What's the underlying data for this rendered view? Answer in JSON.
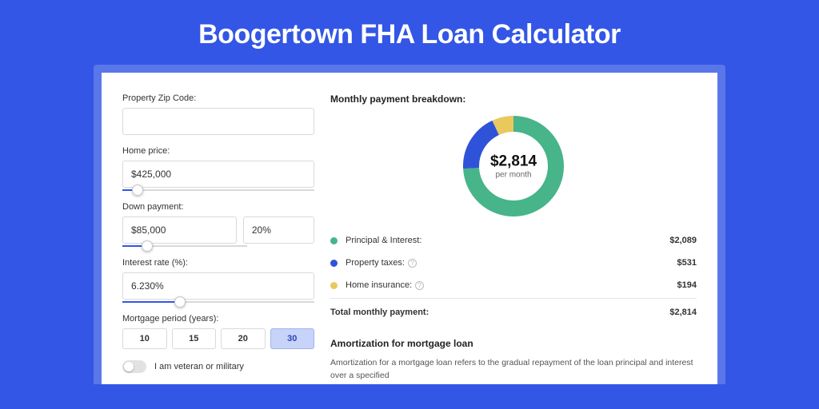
{
  "page": {
    "title": "Boogertown FHA Loan Calculator",
    "bg_color": "#3356e6",
    "panel_wrap_color": "#5a77ea",
    "panel_bg": "#ffffff"
  },
  "form": {
    "zip_label": "Property Zip Code:",
    "zip_value": "",
    "home_price_label": "Home price:",
    "home_price_value": "$425,000",
    "home_price_slider_pct": 8,
    "down_payment_label": "Down payment:",
    "down_payment_value": "$85,000",
    "down_payment_pct_value": "20%",
    "down_payment_slider_pct": 20,
    "interest_label": "Interest rate (%):",
    "interest_value": "6.230%",
    "interest_slider_pct": 30,
    "period_label": "Mortgage period (years):",
    "period_options": [
      "10",
      "15",
      "20",
      "30"
    ],
    "period_active_index": 3,
    "veteran_label": "I am veteran or military",
    "veteran_on": false
  },
  "breakdown": {
    "title": "Monthly payment breakdown:",
    "center_amount": "$2,814",
    "center_sub": "per month",
    "donut": {
      "size": 126,
      "thickness": 20,
      "slices": [
        {
          "name": "principal_interest",
          "pct": 74.2,
          "color": "#47b48a"
        },
        {
          "name": "property_taxes",
          "pct": 18.9,
          "color": "#2f53d8"
        },
        {
          "name": "home_insurance",
          "pct": 6.9,
          "color": "#e9c95e"
        }
      ]
    },
    "items": [
      {
        "label": "Principal & Interest:",
        "value": "$2,089",
        "color": "#47b48a",
        "info": false
      },
      {
        "label": "Property taxes:",
        "value": "$531",
        "color": "#2f53d8",
        "info": true
      },
      {
        "label": "Home insurance:",
        "value": "$194",
        "color": "#e9c95e",
        "info": true
      }
    ],
    "total_label": "Total monthly payment:",
    "total_value": "$2,814"
  },
  "amortization": {
    "title": "Amortization for mortgage loan",
    "text": "Amortization for a mortgage loan refers to the gradual repayment of the loan principal and interest over a specified"
  }
}
